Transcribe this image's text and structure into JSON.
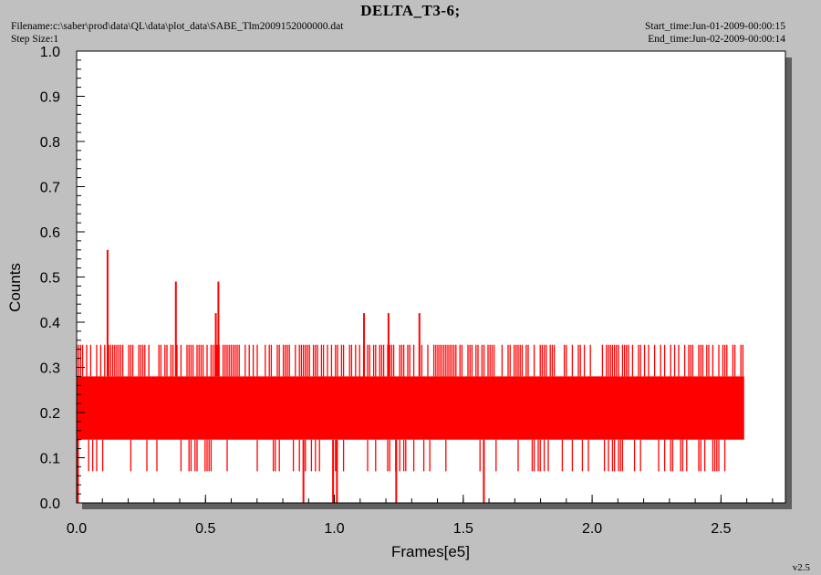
{
  "header": {
    "title": "DELTA_T3-6;",
    "filename_line": "Filename:c:\\saber\\prod\\data\\QL\\data\\plot_data\\SABE_Tlm2009152000000.dat",
    "step_line": "Step Size:1",
    "start_line": "Start_time:Jun-01-2009-00:00:15",
    "end_line": "End_time:Jun-02-2009-00:00:14",
    "version": "v2.5"
  },
  "colors": {
    "series": "#ff0000",
    "background": "#c0c0c0",
    "plot_area": "#ffffff"
  },
  "chart_data": {
    "type": "line",
    "title": "DELTA_T3-6;",
    "xlabel": "Frames[e5]",
    "ylabel": "Counts",
    "xlim": [
      0,
      2.75
    ],
    "ylim": [
      0,
      1.0
    ],
    "x_ticks": [
      0.0,
      0.5,
      1.0,
      1.5,
      2.0,
      2.5
    ],
    "x_tick_labels": [
      "0.0",
      "0.5",
      "1.0",
      "1.5",
      "2.0",
      "2.5"
    ],
    "y_ticks": [
      0.0,
      0.1,
      0.2,
      0.3,
      0.4,
      0.5,
      0.6,
      0.7,
      0.8,
      0.9,
      1.0
    ],
    "y_tick_labels": [
      "0.0",
      "0.1",
      "0.2",
      "0.3",
      "0.4",
      "0.5",
      "0.6",
      "0.7",
      "0.8",
      "0.9",
      "1.0"
    ],
    "grid": false,
    "series": [
      {
        "color": "#ff0000",
        "x_range": [
          0.0,
          2.59
        ],
        "band": {
          "ymin": 0.14,
          "ymax": 0.28
        },
        "frequent_upper_level": 0.35,
        "frequent_lower_level": 0.07,
        "spikes_up": [
          {
            "x": 0.12,
            "y": 0.56
          },
          {
            "x": 0.385,
            "y": 0.49
          },
          {
            "x": 0.54,
            "y": 0.42
          },
          {
            "x": 0.55,
            "y": 0.49
          },
          {
            "x": 1.115,
            "y": 0.42
          },
          {
            "x": 1.21,
            "y": 0.42
          },
          {
            "x": 1.33,
            "y": 0.42
          }
        ],
        "spikes_down": [
          {
            "x": 0.005,
            "y": 0.0
          },
          {
            "x": 0.88,
            "y": 0.0
          },
          {
            "x": 0.995,
            "y": 0.0
          },
          {
            "x": 1.01,
            "y": 0.0
          },
          {
            "x": 1.24,
            "y": 0.0
          },
          {
            "x": 1.58,
            "y": 0.0
          }
        ]
      }
    ]
  }
}
